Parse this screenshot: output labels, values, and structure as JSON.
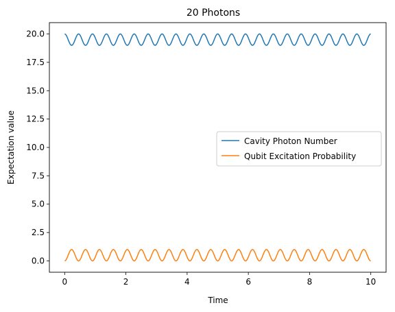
{
  "chart_data": {
    "type": "line",
    "title": "20 Photons",
    "xlabel": "Time",
    "ylabel": "Expectation value",
    "xlim": [
      -0.5,
      10.5
    ],
    "ylim": [
      -1.0,
      21.0
    ],
    "x_ticks": [
      0,
      2,
      4,
      6,
      8,
      10
    ],
    "x_tick_labels": [
      "0",
      "2",
      "4",
      "6",
      "8",
      "10"
    ],
    "y_ticks": [
      0.0,
      2.5,
      5.0,
      7.5,
      10.0,
      12.5,
      15.0,
      17.5,
      20.0
    ],
    "y_tick_labels": [
      "0.0",
      "2.5",
      "5.0",
      "7.5",
      "10.0",
      "12.5",
      "15.0",
      "17.5",
      "20.0"
    ],
    "grid": false,
    "legend_position": "center-right",
    "x_range": [
      0,
      10
    ],
    "series": [
      {
        "name": "Cavity Photon Number",
        "color": "#1f77b4",
        "baseline": 20.0,
        "amplitude": -1.0,
        "oscillation_period": 0.4545,
        "values_min": 19.0,
        "values_max": 20.0
      },
      {
        "name": "Qubit Excitation Probability",
        "color": "#ff7f0e",
        "baseline": 0.0,
        "amplitude": 1.0,
        "oscillation_period": 0.4545,
        "values_min": 0.0,
        "values_max": 1.0
      }
    ]
  }
}
